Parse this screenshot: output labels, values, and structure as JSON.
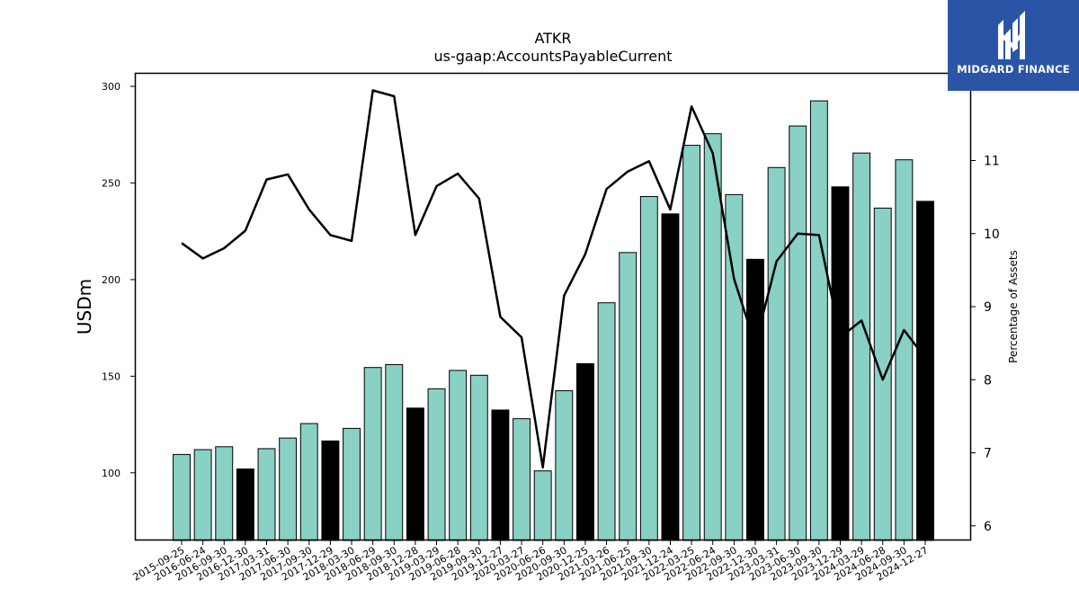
{
  "brand": {
    "name": "MIDGARD FINANCE",
    "logo_bg": "#2a55a6",
    "logo_icon": "midgard-mark-icon"
  },
  "chart_data": {
    "type": "bar",
    "title": "ATKR",
    "subtitle": "us-gaap:AccountsPayableCurrent",
    "ylabel": "USDm",
    "ylabel_right": "Percentage of Assets",
    "ylim": [
      65,
      307
    ],
    "ylim_right": [
      5.8,
      12.2
    ],
    "yticks": [
      100,
      150,
      200,
      250,
      300
    ],
    "yticks_right": [
      6,
      7,
      8,
      9,
      10,
      11
    ],
    "bar_color": "#88d1c4",
    "highlight_color": "#000000",
    "line_color": "#000000",
    "categories": [
      "2015-09-25",
      "2016-06-24",
      "2016-09-30",
      "2016-12-30",
      "2017-03-31",
      "2017-06-30",
      "2017-09-30",
      "2017-12-29",
      "2018-03-30",
      "2018-06-29",
      "2018-09-30",
      "2018-12-28",
      "2019-03-29",
      "2019-06-28",
      "2019-09-30",
      "2019-12-27",
      "2020-03-27",
      "2020-06-26",
      "2020-09-30",
      "2020-12-25",
      "2021-03-26",
      "2021-06-25",
      "2021-09-30",
      "2021-12-24",
      "2022-03-25",
      "2022-06-24",
      "2022-09-30",
      "2022-12-30",
      "2023-03-31",
      "2023-06-30",
      "2023-09-30",
      "2023-12-29",
      "2024-03-29",
      "2024-06-28",
      "2024-09-30",
      "2024-12-27"
    ],
    "series": [
      {
        "type": "bar",
        "values": [
          109.5,
          112,
          113.5,
          102,
          112.5,
          118,
          125.5,
          116.5,
          123,
          154.5,
          156,
          133.5,
          143.5,
          153,
          150.5,
          132.5,
          128,
          101,
          142.5,
          156.5,
          188,
          214,
          243,
          234,
          269.5,
          275.5,
          244,
          210.5,
          258,
          279.5,
          292.5,
          248,
          265.5,
          237,
          262,
          240.5
        ],
        "highlight": [
          false,
          false,
          false,
          true,
          false,
          false,
          false,
          true,
          false,
          false,
          false,
          true,
          false,
          false,
          false,
          true,
          false,
          false,
          false,
          true,
          false,
          false,
          false,
          true,
          false,
          false,
          false,
          true,
          false,
          false,
          false,
          true,
          false,
          false,
          false,
          true
        ]
      },
      {
        "type": "line",
        "axis": "right",
        "values": [
          9.87,
          9.66,
          9.8,
          10.04,
          10.74,
          10.81,
          10.33,
          9.98,
          9.9,
          11.96,
          11.88,
          9.98,
          10.65,
          10.82,
          10.48,
          8.86,
          8.58,
          6.8,
          9.15,
          9.72,
          10.61,
          10.85,
          10.99,
          10.33,
          11.74,
          11.1,
          9.38,
          8.48,
          9.62,
          10.0,
          9.98,
          8.58,
          8.81,
          8.0,
          8.68,
          8.3
        ]
      }
    ]
  }
}
